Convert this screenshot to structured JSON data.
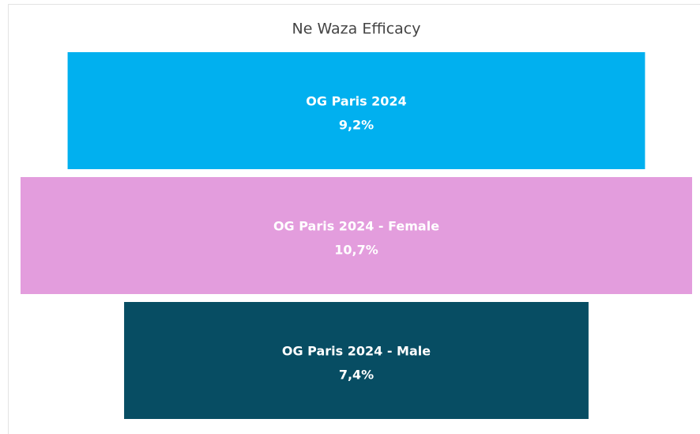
{
  "chart_data": {
    "type": "funnel",
    "title": "Ne Waza Efficacy",
    "categories": [
      "OG Paris 2024",
      "OG Paris 2024 - Female",
      "OG Paris 2024 - Male"
    ],
    "values": [
      9.2,
      10.7,
      7.4
    ],
    "value_labels": [
      "9,2%",
      "10,7%",
      "7,4%"
    ],
    "colors": [
      "#01b0ef",
      "#e39ddd",
      "#074d63"
    ]
  }
}
